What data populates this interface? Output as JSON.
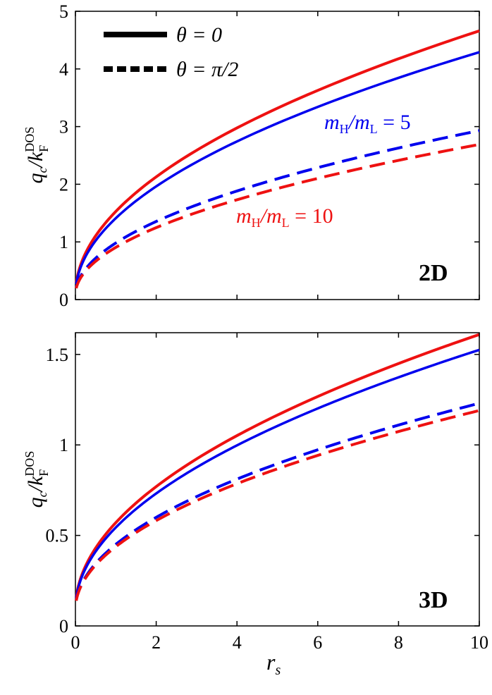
{
  "chart_data": [
    {
      "id": "top",
      "type": "line",
      "panel_label": "2D",
      "ylabel": "q_c / k_F^DOS",
      "xlabel": "",
      "xlim": [
        0,
        10
      ],
      "ylim": [
        0,
        5
      ],
      "yticks": [
        0,
        1,
        2,
        3,
        4,
        5
      ],
      "ytick_labels": [
        "0",
        "1",
        "2",
        "3",
        "4",
        "5"
      ],
      "xticks": [
        0,
        2,
        4,
        6,
        8,
        10
      ],
      "legend": {
        "placement": "top-left",
        "entries": [
          {
            "name": "θ = 0",
            "style": "solid"
          },
          {
            "name": "θ = π/2",
            "style": "dashed"
          }
        ]
      },
      "annotations": [
        {
          "text": "m_H/m_L = 5",
          "color": "#0000ee",
          "at": [
            6.5,
            3.1
          ]
        },
        {
          "text": "m_H/m_L = 10",
          "color": "#ee1111",
          "at": [
            5.6,
            1.45
          ]
        }
      ],
      "series": [
        {
          "name": "mH/mL=10, θ=0",
          "color": "#ee1111",
          "style": "solid",
          "width": 4,
          "x": [
            0.01,
            10
          ],
          "y_at_10": 4.66,
          "y_min": 0.08
        },
        {
          "name": "mH/mL=5, θ=0",
          "color": "#0000ee",
          "style": "solid",
          "width": 3.5,
          "x": [
            0.01,
            10
          ],
          "y_at_10": 4.29,
          "y_min": 0.08
        },
        {
          "name": "mH/mL=5, θ=π/2",
          "color": "#0000ee",
          "style": "dashed",
          "width": 4,
          "x": [
            0.01,
            10
          ],
          "y_at_10": 2.93,
          "y_min": 0.08
        },
        {
          "name": "mH/mL=10, θ=π/2",
          "color": "#ee1111",
          "style": "dashed",
          "width": 4,
          "x": [
            0.01,
            10
          ],
          "y_at_10": 2.69,
          "y_min": 0.08
        }
      ]
    },
    {
      "id": "bottom",
      "type": "line",
      "panel_label": "3D",
      "ylabel": "q_c / k_F^DOS",
      "xlabel": "r_s",
      "xlim": [
        0,
        10
      ],
      "ylim": [
        0,
        1.62
      ],
      "yticks": [
        0,
        0.5,
        1,
        1.5
      ],
      "ytick_labels": [
        "0",
        "0.5",
        "1",
        "1.5"
      ],
      "xticks": [
        0,
        2,
        4,
        6,
        8,
        10
      ],
      "xtick_labels": [
        "0",
        "2",
        "4",
        "6",
        "8",
        "10"
      ],
      "series": [
        {
          "name": "mH/mL=10, θ=0",
          "color": "#ee1111",
          "style": "solid",
          "width": 4,
          "y_at_10": 1.61,
          "y_min": 0.09
        },
        {
          "name": "mH/mL=5, θ=0",
          "color": "#0000ee",
          "style": "solid",
          "width": 3.5,
          "y_at_10": 1.525,
          "y_min": 0.09
        },
        {
          "name": "mH/mL=5, θ=π/2",
          "color": "#0000ee",
          "style": "dashed",
          "width": 4,
          "y_at_10": 1.23,
          "y_min": 0.09
        },
        {
          "name": "mH/mL=10, θ=π/2",
          "color": "#ee1111",
          "style": "dashed",
          "width": 4,
          "y_at_10": 1.19,
          "y_min": 0.09
        }
      ]
    }
  ]
}
